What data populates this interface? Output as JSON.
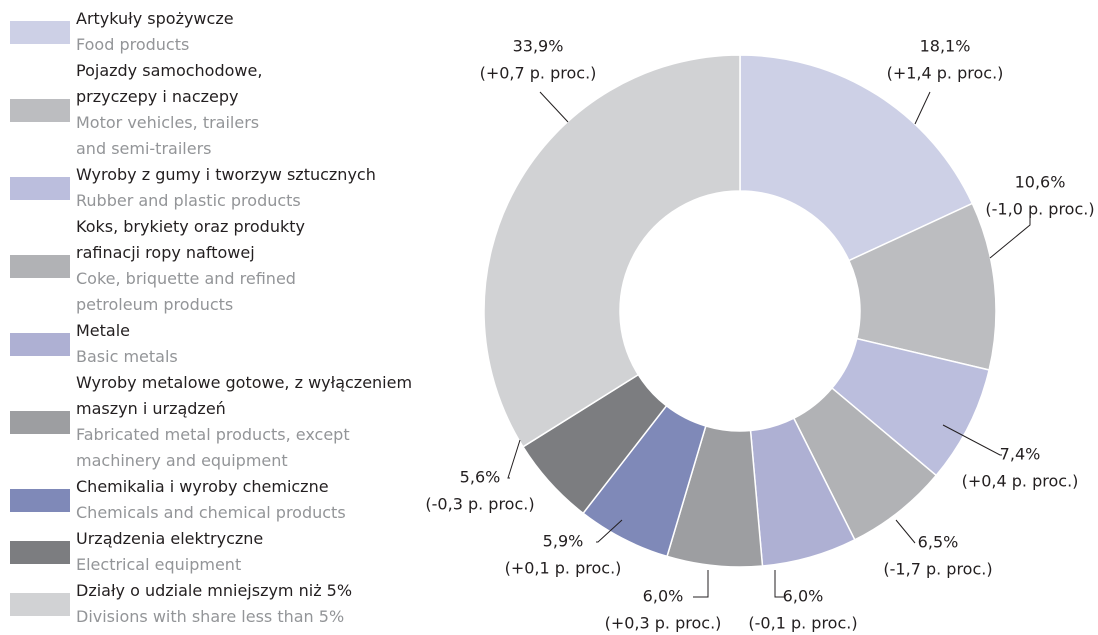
{
  "chart_data": {
    "type": "donut",
    "categories": [
      "Artykuły spożywcze",
      "Pojazdy samochodowe,\nprzyczepy i naczepy",
      "Wyroby z gumy i tworzyw sztucznych",
      "Koks, brykiety oraz produkty\nrafinacji ropy naftowej",
      "Metale",
      "Wyroby metalowe gotowe, z wyłączeniem\nmaszyn i urządzeń",
      "Chemikalia i wyroby chemiczne",
      "Urządzenia elektryczne",
      "Działy o udziale mniejszym niż 5%"
    ],
    "categories_en": [
      "Food products",
      "Motor vehicles, trailers\nand semi-trailers",
      "Rubber and plastic products",
      "Coke, briquette and refined\npetroleum products",
      "Basic metals",
      "Fabricated metal products, except\nmachinery and equipment",
      "Chemicals and chemical products",
      "Electrical equipment",
      "Divisions with  share less than 5%"
    ],
    "values": [
      18.1,
      10.6,
      7.4,
      6.5,
      6.0,
      6.0,
      5.9,
      5.6,
      33.9
    ],
    "value_labels": [
      "18,1%",
      "10,6%",
      "7,4%",
      "6,5%",
      "6,0%",
      "6,0%",
      "5,9%",
      "5,6%",
      "33,9%"
    ],
    "change_labels": [
      "(+1,4 p. proc.)",
      "(-1,0 p. proc.)",
      "(+0,4 p. proc.)",
      "(-1,7 p. proc.)",
      "(-0,1 p. proc.)",
      "(+0,3 p. proc.)",
      "(+0,1 p. proc.)",
      "(-0,3 p. proc.)",
      "(+0,7 p. proc.)"
    ],
    "colors": [
      "#cdd0e6",
      "#bcbdc0",
      "#bbbedd",
      "#b1b2b5",
      "#aeb0d3",
      "#9d9ea1",
      "#7f89b8",
      "#7c7d80",
      "#d1d2d4"
    ]
  }
}
